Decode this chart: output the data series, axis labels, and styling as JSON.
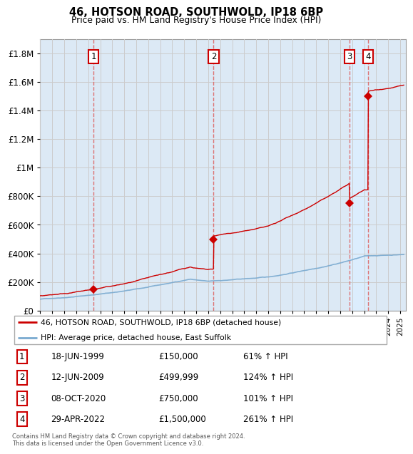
{
  "title": "46, HOTSON ROAD, SOUTHWOLD, IP18 6BP",
  "subtitle": "Price paid vs. HM Land Registry's House Price Index (HPI)",
  "ylim": [
    0,
    1900000
  ],
  "yticks": [
    0,
    200000,
    400000,
    600000,
    800000,
    1000000,
    1200000,
    1400000,
    1600000,
    1800000
  ],
  "ytick_labels": [
    "£0",
    "£200K",
    "£400K",
    "£600K",
    "£800K",
    "£1M",
    "£1.2M",
    "£1.4M",
    "£1.6M",
    "£1.8M"
  ],
  "xmin": 1995.0,
  "xmax": 2025.5,
  "purchases": [
    {
      "num": 1,
      "year": 1999.45,
      "price": 150000,
      "date": "18-JUN-1999",
      "pct": "61%"
    },
    {
      "num": 2,
      "year": 2009.45,
      "price": 499999,
      "date": "12-JUN-2009",
      "pct": "124%"
    },
    {
      "num": 3,
      "year": 2020.77,
      "price": 750000,
      "date": "08-OCT-2020",
      "pct": "101%"
    },
    {
      "num": 4,
      "year": 2022.33,
      "price": 1500000,
      "date": "29-APR-2022",
      "pct": "261%"
    }
  ],
  "legend_property_label": "46, HOTSON ROAD, SOUTHWOLD, IP18 6BP (detached house)",
  "legend_hpi_label": "HPI: Average price, detached house, East Suffolk",
  "footnote": "Contains HM Land Registry data © Crown copyright and database right 2024.\nThis data is licensed under the Open Government Licence v3.0.",
  "property_line_color": "#cc0000",
  "hpi_line_color": "#7aaad0",
  "vline_color": "#dd6666",
  "highlight_color": "#ddeeff",
  "background_color": "#dce9f5",
  "plot_bg_color": "#ffffff",
  "grid_color": "#cccccc"
}
